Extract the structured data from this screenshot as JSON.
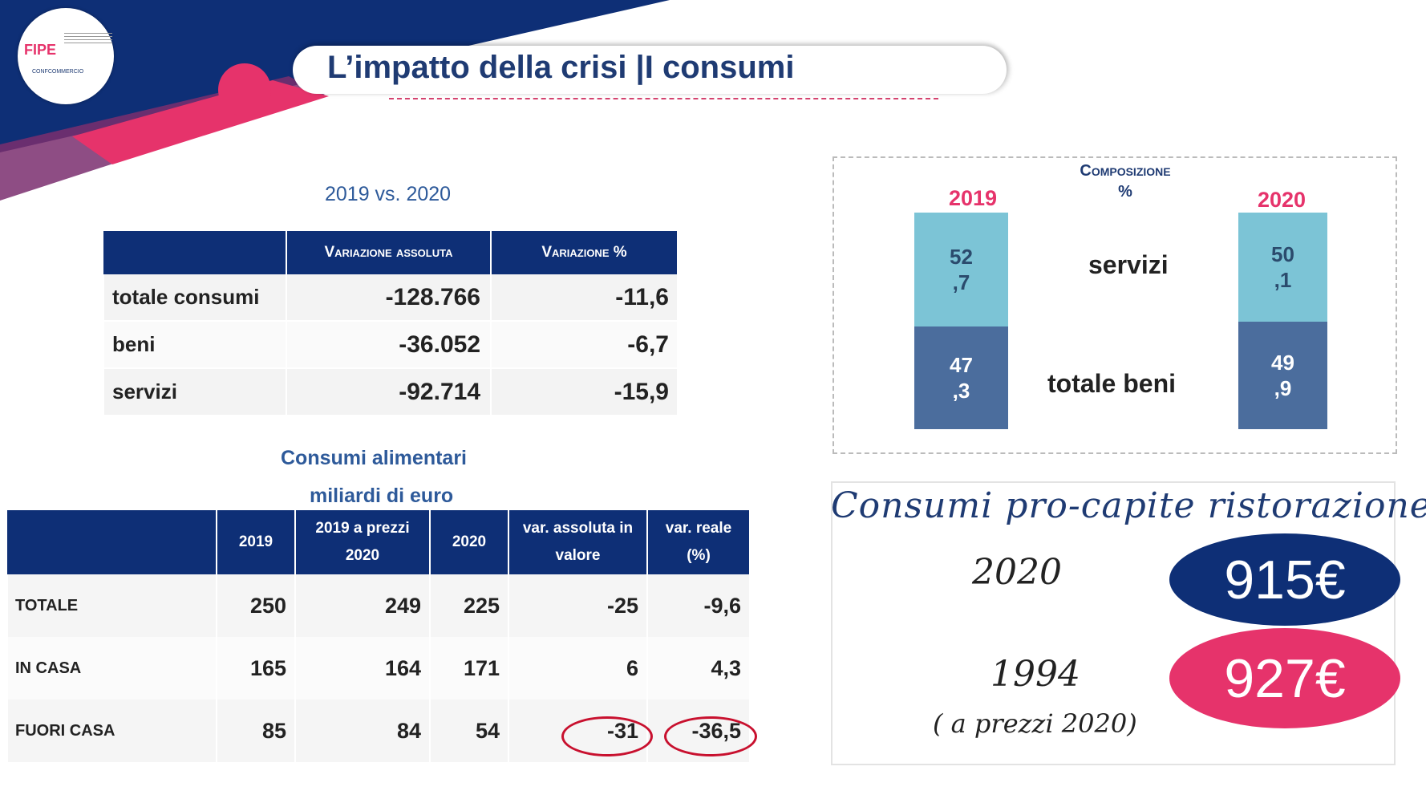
{
  "header": {
    "title": "L’impatto della crisi |I consumi",
    "logo_text": "FIPE",
    "logo_confcommercio": "CONFCOMMERCIO"
  },
  "table1": {
    "subtitle": "2019 vs. 2020",
    "headers": [
      "",
      "Variazione assoluta",
      "Variazione %"
    ],
    "rows": [
      {
        "label": "totale consumi",
        "abs": "-128.766",
        "pct": "-11,6"
      },
      {
        "label": "beni",
        "abs": "-36.052",
        "pct": "-6,7"
      },
      {
        "label": "servizi",
        "abs": "-92.714",
        "pct": "-15,9"
      }
    ]
  },
  "table2": {
    "subtitle1": "Consumi alimentari",
    "subtitle2": "miliardi di euro",
    "headers": [
      "",
      "2019",
      "2019 a prezzi 2020",
      "2020",
      "var. assoluta in valore",
      "var. reale (%)"
    ],
    "rows": [
      {
        "label": "TOTALE",
        "v2019": "250",
        "v2019p": "249",
        "v2020": "225",
        "var_abs": "-25",
        "var_real": "-9,6"
      },
      {
        "label": "IN CASA",
        "v2019": "165",
        "v2019p": "164",
        "v2020": "171",
        "var_abs": "6",
        "var_real": "4,3"
      },
      {
        "label": "FUORI CASA",
        "v2019": "85",
        "v2019p": "84",
        "v2020": "54",
        "var_abs": "-31",
        "var_real": "-36,5"
      }
    ]
  },
  "composition": {
    "title_line1": "Composizione",
    "title_line2": "%",
    "year_left": "2019",
    "year_right": "2020",
    "label_servizi": "servizi",
    "label_beni": "totale beni",
    "y2019": {
      "servizi": "52\n,7",
      "beni": "47\n,3"
    },
    "y2020": {
      "servizi": "50\n,1",
      "beni": "49\n,9"
    },
    "colors": {
      "servizi": "#7cc4d6",
      "beni": "#4b6d9d"
    }
  },
  "procapite": {
    "title": "Consumi pro-capite ristorazione",
    "year1": "2020",
    "value1": "915€",
    "year2": "1994",
    "note2": "( a prezzi 2020)",
    "value2": "927€"
  }
}
